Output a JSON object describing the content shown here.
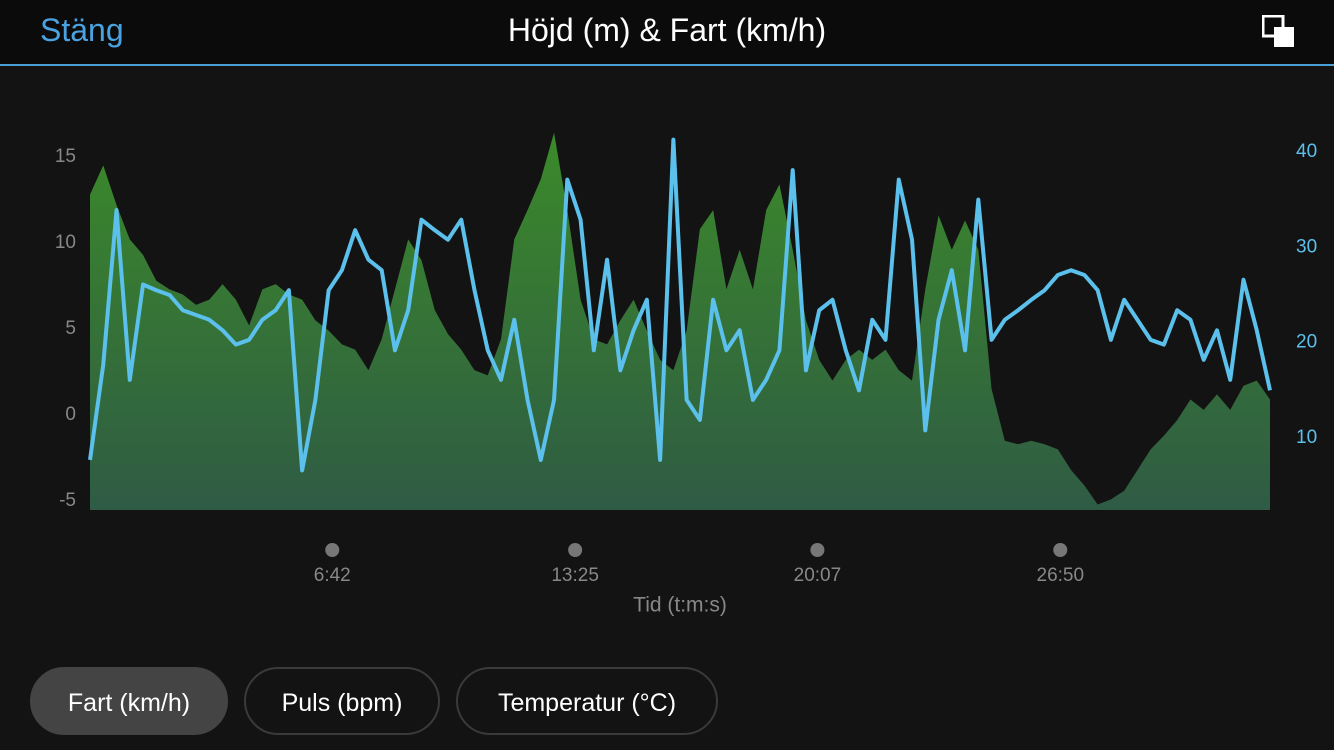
{
  "header": {
    "close": "Stäng",
    "title": "Höjd (m) & Fart (km/h)"
  },
  "chart_data": {
    "type": "combo",
    "xlabel": "Tid (t:m:s)",
    "x": [
      0,
      22,
      44,
      66,
      88,
      110,
      132,
      154,
      176,
      198,
      220,
      242,
      264,
      286,
      308,
      330,
      352,
      374,
      396,
      418,
      440,
      462,
      484,
      506,
      528,
      550,
      572,
      594,
      616,
      638,
      660,
      682,
      704,
      726,
      748,
      770,
      792,
      814,
      836,
      858,
      880,
      902,
      924,
      946,
      968,
      990,
      1012,
      1034,
      1056,
      1078,
      1100,
      1122,
      1144,
      1166,
      1188,
      1210,
      1232,
      1254,
      1276,
      1298,
      1320,
      1342,
      1364,
      1386,
      1408,
      1430,
      1452,
      1474,
      1496,
      1518,
      1540,
      1562,
      1584,
      1606,
      1628,
      1650,
      1672,
      1694,
      1716,
      1738,
      1760,
      1782,
      1804,
      1826,
      1848,
      1870,
      1892,
      1914,
      1936,
      1958
    ],
    "xlim": [
      0,
      1958
    ],
    "xticks": [
      {
        "value": 402,
        "label": "6:42"
      },
      {
        "value": 805,
        "label": "13:25"
      },
      {
        "value": 1207,
        "label": "20:07"
      },
      {
        "value": 1610,
        "label": "26:50"
      }
    ],
    "ylim": [
      -5.52,
      16.5
    ],
    "yticks": [
      15,
      10,
      5,
      0,
      -5
    ],
    "y2lim": [
      2.45,
      42.2
    ],
    "y2ticks": [
      40,
      30,
      20,
      10
    ],
    "series": [
      {
        "type": "area",
        "color": "#3b8a2a",
        "values": [
          12.8,
          14.5,
          12.2,
          10.2,
          9.3,
          7.8,
          7.3,
          7.0,
          6.4,
          6.7,
          7.6,
          6.7,
          5.2,
          7.3,
          7.6,
          7.0,
          6.7,
          5.5,
          4.9,
          4.1,
          3.8,
          2.6,
          4.4,
          7.3,
          10.2,
          9.0,
          6.1,
          4.7,
          3.8,
          2.6,
          2.3,
          4.4,
          10.2,
          11.9,
          13.7,
          16.4,
          11.9,
          6.7,
          4.4,
          4.1,
          5.5,
          6.7,
          4.9,
          3.2,
          2.6,
          4.9,
          10.8,
          11.9,
          7.3,
          9.6,
          7.3,
          11.9,
          13.4,
          9.6,
          5.5,
          3.2,
          2.0,
          3.2,
          3.8,
          3.2,
          3.8,
          2.6,
          2.0,
          7.3,
          11.6,
          9.6,
          11.3,
          9.6,
          1.5,
          -1.5,
          -1.7,
          -1.5,
          -1.7,
          -2.0,
          -3.2,
          -4.1,
          -5.2,
          -4.9,
          -4.4,
          -3.2,
          -2.0,
          -1.2,
          -0.3,
          0.9,
          0.3,
          1.2,
          0.3,
          1.7,
          2.0,
          0.9
        ]
      },
      {
        "type": "line",
        "axis": "y2",
        "color": "#5bc0eb",
        "values": [
          7.7,
          17.7,
          33.9,
          16.1,
          26.1,
          25.5,
          25.0,
          23.4,
          22.9,
          22.4,
          21.3,
          19.8,
          20.3,
          22.4,
          23.4,
          25.5,
          6.6,
          14.0,
          25.5,
          27.6,
          31.8,
          28.7,
          27.6,
          19.2,
          23.4,
          32.9,
          31.8,
          30.8,
          32.9,
          25.5,
          19.2,
          16.1,
          22.4,
          14.0,
          7.7,
          14.0,
          37.1,
          32.9,
          19.2,
          28.7,
          17.1,
          21.3,
          24.5,
          7.7,
          41.3,
          14.0,
          11.9,
          24.5,
          19.2,
          21.3,
          14.0,
          16.1,
          19.2,
          38.1,
          17.1,
          23.4,
          24.5,
          19.2,
          15.0,
          22.4,
          20.3,
          37.1,
          30.8,
          10.8,
          22.4,
          27.6,
          19.2,
          35.0,
          20.3,
          22.4,
          23.4,
          24.5,
          25.5,
          27.1,
          27.6,
          27.1,
          25.5,
          20.3,
          24.5,
          22.4,
          20.3,
          19.8,
          23.4,
          22.4,
          18.2,
          21.3,
          16.1,
          26.6,
          21.3,
          15.0
        ]
      }
    ]
  },
  "buttons": [
    {
      "label": "Fart (km/h)"
    },
    {
      "label": "Puls (bpm)"
    },
    {
      "label": "Temperatur (°C)"
    }
  ]
}
